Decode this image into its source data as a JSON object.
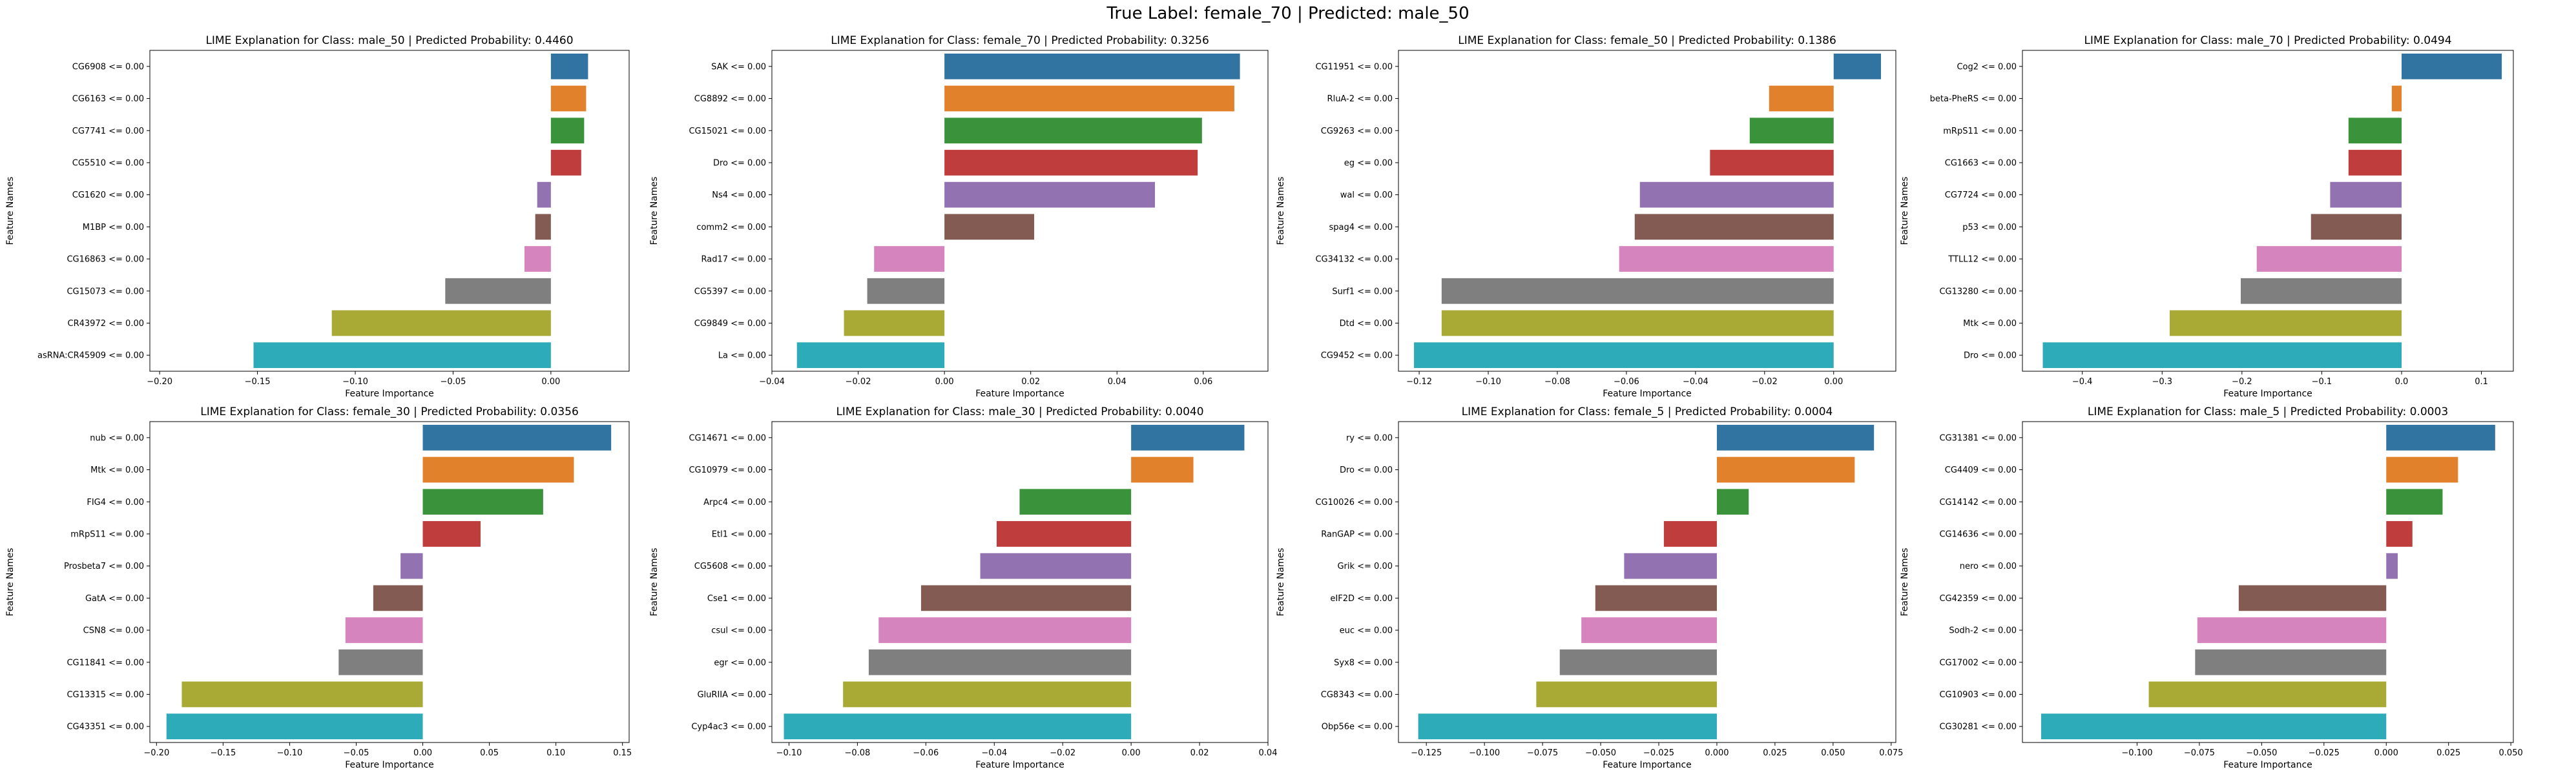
{
  "suptitle": "True Label: female_70 | Predicted: male_50",
  "palette": [
    "#3274a1",
    "#e1812c",
    "#3a923a",
    "#c03d3e",
    "#9372b2",
    "#845b53",
    "#d684bd",
    "#7f7f7f",
    "#a9aa35",
    "#2eabb8"
  ],
  "chart_data": [
    {
      "type": "bar",
      "title": "LIME Explanation for Class: male_50 | Predicted Probability: 0.4460",
      "xlabel": "Feature Importance",
      "ylabel": "Feature Names",
      "xlim": [
        -0.205,
        0.04
      ],
      "xticks": [
        -0.2,
        -0.15,
        -0.1,
        -0.05,
        0.0
      ],
      "xtick_labels": [
        "−0.20",
        "−0.15",
        "−0.10",
        "−0.05",
        "0.00"
      ],
      "categories": [
        "CG6908 <= 0.00",
        "CG6163 <= 0.00",
        "CG7741 <= 0.00",
        "CG5510 <= 0.00",
        "CG1620 <= 0.00",
        "M1BP <= 0.00",
        "CG16863 <= 0.00",
        "CG15073 <= 0.00",
        "CR43972 <= 0.00",
        "asRNA:CR45909 <= 0.00"
      ],
      "values": [
        0.019,
        0.018,
        0.017,
        0.0155,
        -0.007,
        -0.008,
        -0.0135,
        -0.054,
        -0.112,
        -0.152
      ]
    },
    {
      "type": "bar",
      "title": "LIME Explanation for Class: female_70 | Predicted Probability: 0.3256",
      "xlabel": "Feature Importance",
      "ylabel": "Feature Names",
      "xlim": [
        -0.04,
        0.075
      ],
      "xticks": [
        -0.04,
        -0.02,
        0.0,
        0.02,
        0.04,
        0.06
      ],
      "xtick_labels": [
        "−0.04",
        "−0.02",
        "0.00",
        "0.02",
        "0.04",
        "0.06"
      ],
      "categories": [
        "SAK <= 0.00",
        "CG8892 <= 0.00",
        "CG15021 <= 0.00",
        "Dro <= 0.00",
        "Ns4 <= 0.00",
        "comm2 <= 0.00",
        "Rad17 <= 0.00",
        "CG5397 <= 0.00",
        "CG9849 <= 0.00",
        "La <= 0.00"
      ],
      "values": [
        0.0685,
        0.0672,
        0.0597,
        0.0587,
        0.0488,
        0.0208,
        -0.0163,
        -0.0179,
        -0.0233,
        -0.0342
      ]
    },
    {
      "type": "bar",
      "title": "LIME Explanation for Class: female_50 | Predicted Probability: 0.1386",
      "xlabel": "Feature Importance",
      "ylabel": "Feature Names",
      "xlim": [
        -0.126,
        0.018
      ],
      "xticks": [
        -0.12,
        -0.1,
        -0.08,
        -0.06,
        -0.04,
        -0.02,
        0.0
      ],
      "xtick_labels": [
        "−0.12",
        "−0.10",
        "−0.08",
        "−0.06",
        "−0.04",
        "−0.02",
        "0.00"
      ],
      "categories": [
        "CG11951 <= 0.00",
        "RluA-2 <= 0.00",
        "CG9263 <= 0.00",
        "eg <= 0.00",
        "wal <= 0.00",
        "spag4 <= 0.00",
        "CG34132 <= 0.00",
        "Surf1 <= 0.00",
        "Dtd <= 0.00",
        "CG9452 <= 0.00"
      ],
      "values": [
        0.0137,
        -0.0187,
        -0.0243,
        -0.0358,
        -0.0561,
        -0.0576,
        -0.0621,
        -0.1135,
        -0.1135,
        -0.1215
      ]
    },
    {
      "type": "bar",
      "title": "LIME Explanation for Class: male_70 | Predicted Probability: 0.0494",
      "xlabel": "Feature Importance",
      "ylabel": "Feature Names",
      "xlim": [
        -0.475,
        0.14
      ],
      "xticks": [
        -0.4,
        -0.3,
        -0.2,
        -0.1,
        0.0,
        0.1
      ],
      "xtick_labels": [
        "−0.4",
        "−0.3",
        "−0.2",
        "−0.1",
        "0.0",
        "0.1"
      ],
      "categories": [
        "Cog2 <= 0.00",
        "beta-PheRS <= 0.00",
        "mRpS11 <= 0.00",
        "CG1663 <= 0.00",
        "CG7724 <= 0.00",
        "p53 <= 0.00",
        "TTLL12 <= 0.00",
        "CG13280 <= 0.00",
        "Mtk <= 0.00",
        "Dro <= 0.00"
      ],
      "values": [
        0.1255,
        -0.0123,
        -0.0665,
        -0.0665,
        -0.0895,
        -0.1135,
        -0.1815,
        -0.2015,
        -0.2905,
        -0.4495
      ]
    },
    {
      "type": "bar",
      "title": "LIME Explanation for Class: female_30 | Predicted Probability: 0.0356",
      "xlabel": "Feature Importance",
      "ylabel": "Feature Names",
      "xlim": [
        -0.205,
        0.155
      ],
      "xticks": [
        -0.2,
        -0.15,
        -0.1,
        -0.05,
        0.0,
        0.05,
        0.1,
        0.15
      ],
      "xtick_labels": [
        "−0.20",
        "−0.15",
        "−0.10",
        "−0.05",
        "0.00",
        "0.05",
        "0.10",
        "0.15"
      ],
      "categories": [
        "nub <= 0.00",
        "Mtk <= 0.00",
        "FIG4 <= 0.00",
        "mRpS11 <= 0.00",
        "Prosbeta7 <= 0.00",
        "GatA <= 0.00",
        "CSN8 <= 0.00",
        "CG11841 <= 0.00",
        "CG13315 <= 0.00",
        "CG43351 <= 0.00"
      ],
      "values": [
        0.1415,
        0.1135,
        0.0904,
        0.0434,
        -0.0167,
        -0.0372,
        -0.0581,
        -0.0632,
        -0.181,
        -0.1925
      ]
    },
    {
      "type": "bar",
      "title": "LIME Explanation for Class: male_30 | Predicted Probability: 0.0040",
      "xlabel": "Feature Importance",
      "ylabel": "Feature Names",
      "xlim": [
        -0.105,
        0.04
      ],
      "xticks": [
        -0.1,
        -0.08,
        -0.06,
        -0.04,
        -0.02,
        0.0,
        0.02,
        0.04
      ],
      "xtick_labels": [
        "−0.10",
        "−0.08",
        "−0.06",
        "−0.04",
        "−0.02",
        "0.00",
        "0.02",
        "0.04"
      ],
      "categories": [
        "CG14671 <= 0.00",
        "CG10979 <= 0.00",
        "Arpc4 <= 0.00",
        "Etl1 <= 0.00",
        "CG5608 <= 0.00",
        "Cse1 <= 0.00",
        "csul <= 0.00",
        "egr <= 0.00",
        "GluRIIA <= 0.00",
        "Cyp4ac3 <= 0.00"
      ],
      "values": [
        0.0331,
        0.0182,
        -0.0326,
        -0.0393,
        -0.0441,
        -0.0614,
        -0.0738,
        -0.0767,
        -0.0842,
        -0.1015
      ]
    },
    {
      "type": "bar",
      "title": "LIME Explanation for Class: female_5 | Predicted Probability: 0.0004",
      "xlabel": "Feature Importance",
      "ylabel": "Feature Names",
      "xlim": [
        -0.137,
        0.077
      ],
      "xticks": [
        -0.125,
        -0.1,
        -0.075,
        -0.05,
        -0.025,
        0.0,
        0.025,
        0.05,
        0.075
      ],
      "xtick_labels": [
        "−0.125",
        "−0.100",
        "−0.075",
        "−0.050",
        "−0.025",
        "0.000",
        "0.025",
        "0.050",
        "0.075"
      ],
      "categories": [
        "ry <= 0.00",
        "Dro <= 0.00",
        "CG10026 <= 0.00",
        "RanGAP <= 0.00",
        "Grik <= 0.00",
        "eIF2D <= 0.00",
        "euc <= 0.00",
        "Syx8 <= 0.00",
        "CG8343 <= 0.00",
        "Obp56e <= 0.00"
      ],
      "values": [
        0.0676,
        0.0593,
        0.0137,
        -0.0228,
        -0.0399,
        -0.0523,
        -0.0583,
        -0.0676,
        -0.0777,
        -0.1285
      ]
    },
    {
      "type": "bar",
      "title": "LIME Explanation for Class: male_5 | Predicted Probability: 0.0003",
      "xlabel": "Feature Importance",
      "ylabel": "Feature Names",
      "xlim": [
        -0.146,
        0.051
      ],
      "xticks": [
        -0.1,
        -0.075,
        -0.05,
        -0.025,
        0.0,
        0.025,
        0.05
      ],
      "xtick_labels": [
        "−0.100",
        "−0.075",
        "−0.050",
        "−0.025",
        "0.000",
        "0.025",
        "0.050"
      ],
      "categories": [
        "CG31381 <= 0.00",
        "CG4409 <= 0.00",
        "CG14142 <= 0.00",
        "CG14636 <= 0.00",
        "nero <= 0.00",
        "CG42359 <= 0.00",
        "Sodh-2 <= 0.00",
        "CG17002 <= 0.00",
        "CG10903 <= 0.00",
        "CG30281 <= 0.00"
      ],
      "values": [
        0.0437,
        0.0288,
        0.0226,
        0.0105,
        0.0046,
        -0.0592,
        -0.0758,
        -0.0767,
        -0.0953,
        -0.1385
      ]
    }
  ]
}
